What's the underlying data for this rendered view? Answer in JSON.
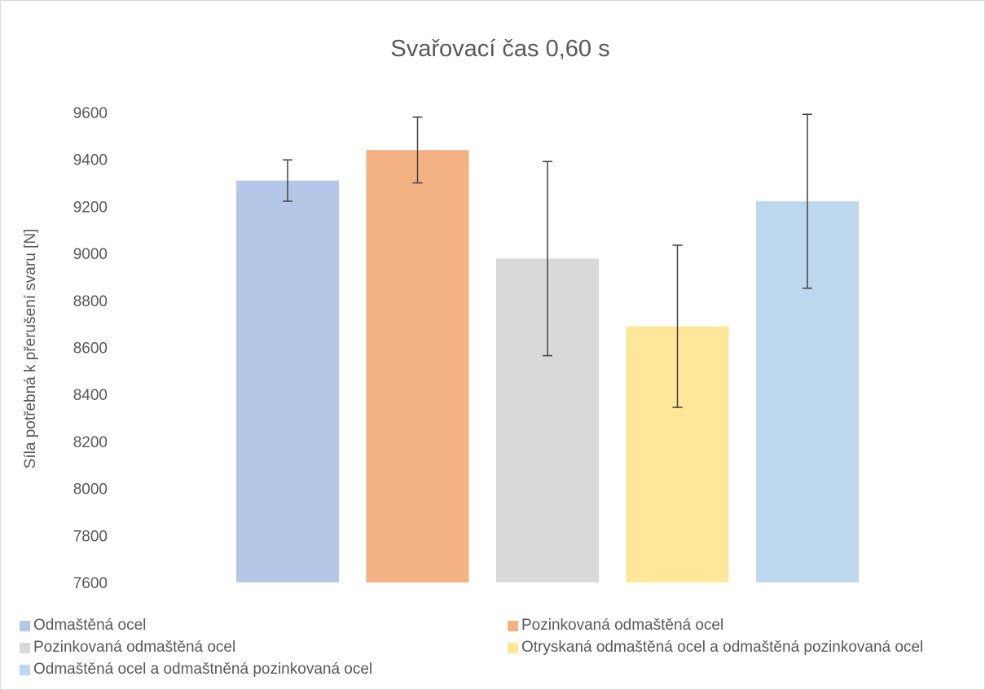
{
  "chart_data": {
    "type": "bar",
    "title": "Svařovací čas 0,60 s",
    "xlabel": "",
    "ylabel": "Síla potřebná k přerušení svaru [N]",
    "ylim": [
      7600,
      9600
    ],
    "yticks": [
      7600,
      7800,
      8000,
      8200,
      8400,
      8600,
      8800,
      9000,
      9200,
      9400,
      9600
    ],
    "grid": false,
    "legend_position": "bottom",
    "series": [
      {
        "name": "Odmaštěná ocel",
        "value": 9310,
        "error": 88,
        "color": "#b4c7e7"
      },
      {
        "name": "Pozinkovaná odmaštěná ocel",
        "value": 9440,
        "error": 140,
        "color": "#f4b183"
      },
      {
        "name": "Pozinkovaná odmaštěná ocel",
        "value": 8978,
        "error": 413,
        "color": "#d9d9d9"
      },
      {
        "name": "Otryskaná odmaštěná ocel a odmaštěná pozinkovaná ocel",
        "value": 8690,
        "error": 345,
        "color": "#ffe699"
      },
      {
        "name": "Odmaštěná ocel a odmaštněná pozinkovaná ocel",
        "value": 9222,
        "error": 370,
        "color": "#bdd7ee"
      }
    ]
  }
}
